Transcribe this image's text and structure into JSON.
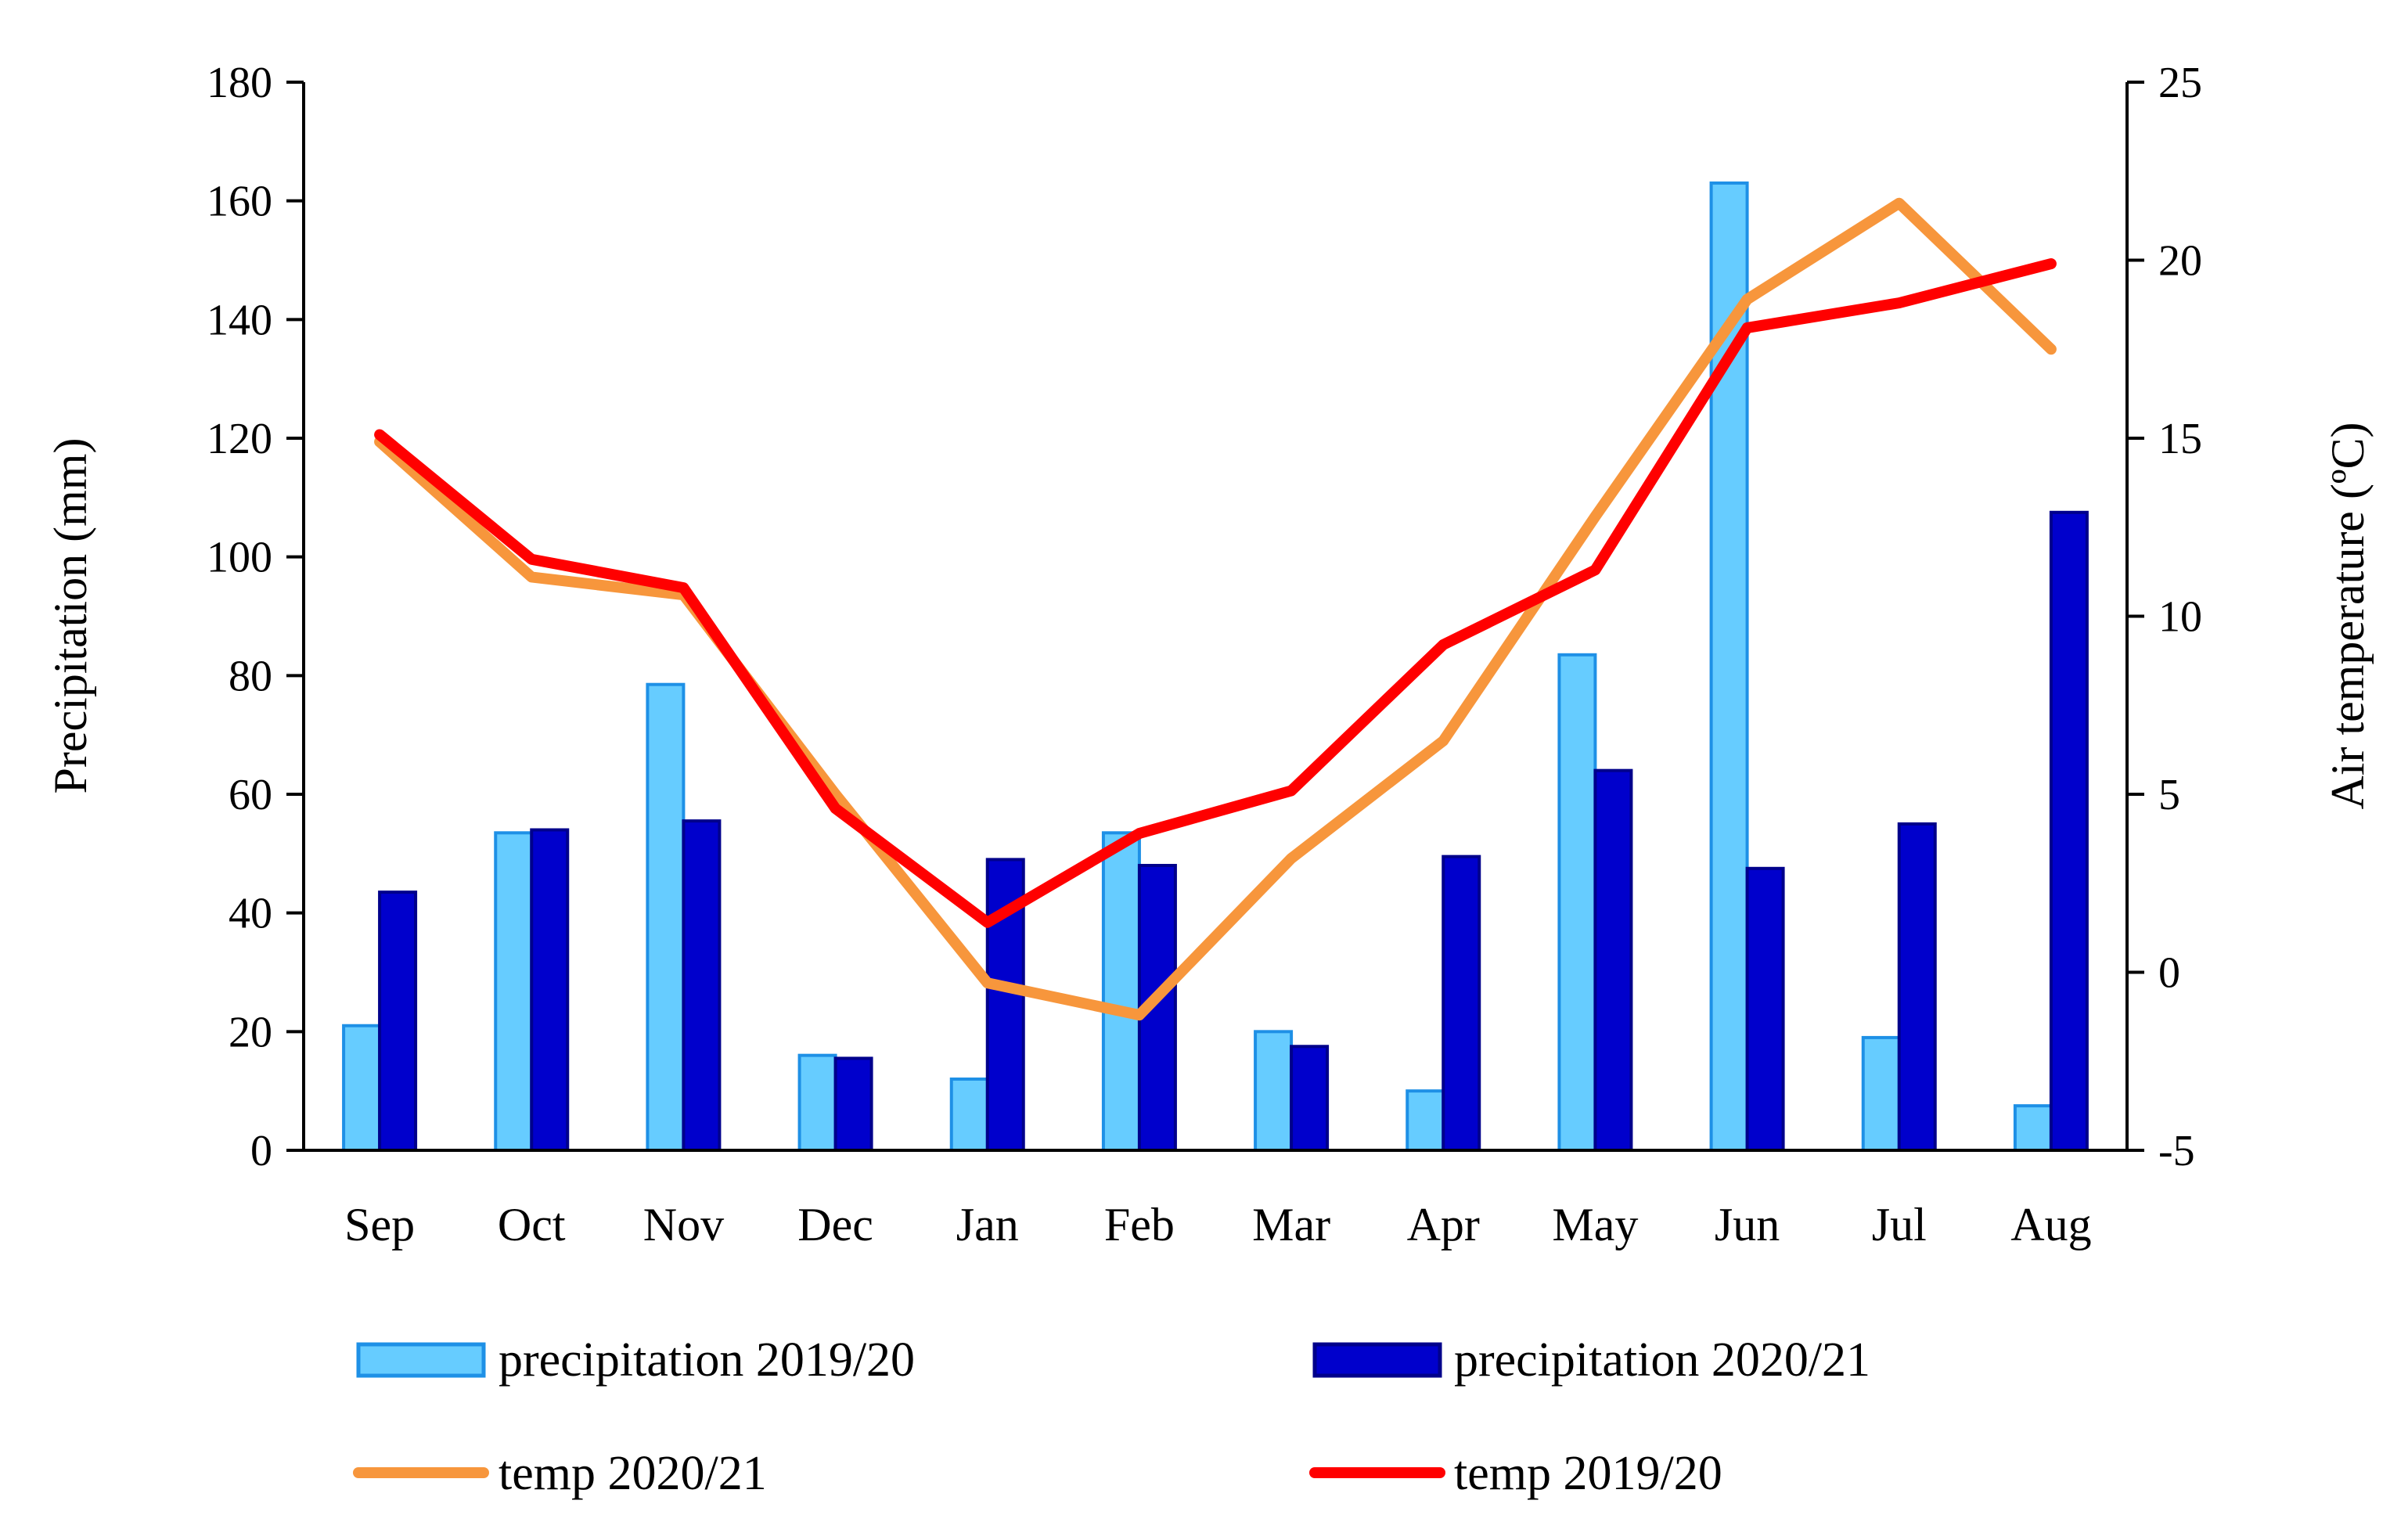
{
  "chart_data": {
    "type": "bar+line",
    "categories": [
      "Sep",
      "Oct",
      "Nov",
      "Dec",
      "Jan",
      "Feb",
      "Mar",
      "Apr",
      "May",
      "Jun",
      "Jul",
      "Aug"
    ],
    "y_left": {
      "label": "Precipitation (mm)",
      "range": [
        0,
        180
      ],
      "ticks": [
        "0",
        "20",
        "40",
        "60",
        "80",
        "100",
        "120",
        "140",
        "160",
        "180"
      ]
    },
    "y_right": {
      "label": "Air temperature (ºC)",
      "range": [
        -5,
        25
      ],
      "ticks": [
        "-5",
        "0",
        "5",
        "10",
        "15",
        "20",
        "25"
      ]
    },
    "bar_series": [
      {
        "name": "precipitation  2019/20",
        "color": "#66CCFF",
        "edge": "#1E90E6",
        "values": [
          21,
          53.5,
          78.5,
          16,
          12,
          53.5,
          20,
          10,
          83.5,
          163,
          19,
          7.5
        ]
      },
      {
        "name": "precipitation 2020/21",
        "color": "#0000CC",
        "edge": "#00008B",
        "values": [
          43.5,
          54,
          55.5,
          15.5,
          49,
          48,
          17.5,
          49.5,
          64,
          47.5,
          55,
          107.5
        ]
      }
    ],
    "line_series": [
      {
        "name": "temp 2020/21",
        "color": "#F7963C",
        "values": [
          14.9,
          11.1,
          10.6,
          5.0,
          -0.3,
          -1.2,
          3.2,
          6.5,
          12.8,
          18.9,
          21.6,
          17.5
        ]
      },
      {
        "name": "temp 2019/20",
        "color": "#FF0000",
        "values": [
          15.1,
          11.6,
          10.8,
          4.6,
          1.4,
          3.9,
          5.1,
          9.2,
          11.3,
          18.1,
          18.8,
          19.9
        ]
      }
    ],
    "legend": {
      "position": "bottom",
      "items": [
        "precipitation  2019/20",
        "precipitation 2020/21",
        "temp 2020/21",
        "temp 2019/20"
      ]
    }
  }
}
